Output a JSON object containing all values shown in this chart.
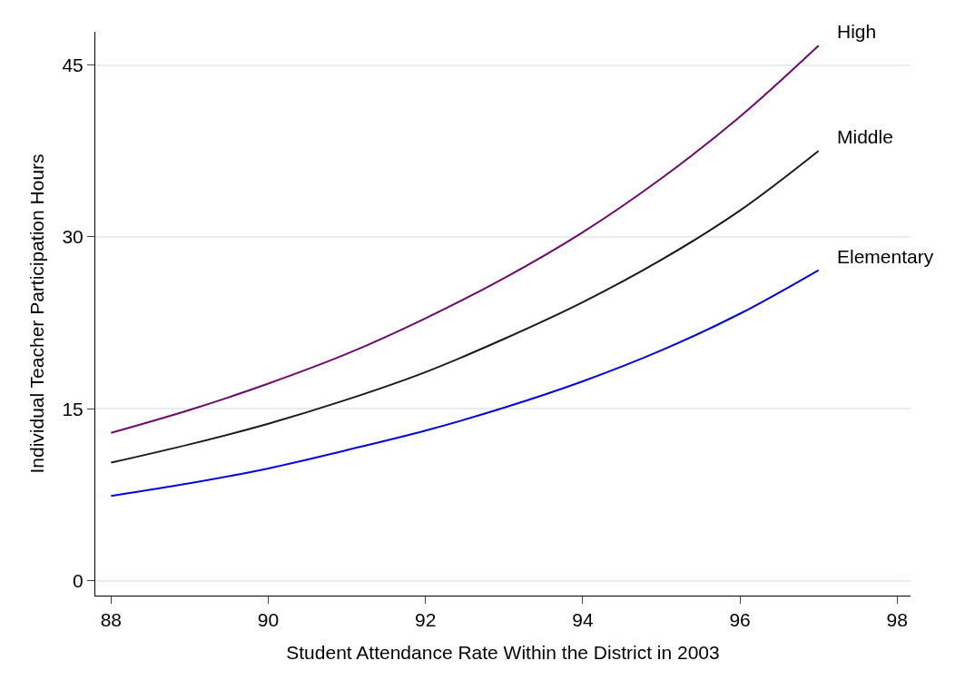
{
  "chart_data": {
    "type": "line",
    "xlabel": "Student Attendance Rate Within the District in 2003",
    "ylabel": "Individual Teacher Participation Hours",
    "x": [
      88,
      89,
      90,
      91,
      92,
      93,
      94,
      95,
      96,
      97
    ],
    "series": [
      {
        "name": "High",
        "color": "#6e0a6e",
        "values": [
          12.9,
          14.9,
          17.2,
          19.8,
          22.9,
          26.4,
          30.4,
          35.1,
          40.5,
          46.7
        ]
      },
      {
        "name": "Middle",
        "color": "#1a1a1a",
        "values": [
          10.3,
          11.9,
          13.7,
          15.8,
          18.2,
          21.1,
          24.3,
          28.0,
          32.3,
          37.5
        ]
      },
      {
        "name": "Elementary",
        "color": "#0000e0",
        "values": [
          7.4,
          8.5,
          9.8,
          11.4,
          13.1,
          15.1,
          17.4,
          20.1,
          23.3,
          27.1
        ]
      }
    ],
    "xlim": [
      87.8,
      98.17
    ],
    "xticks": [
      88,
      90,
      92,
      94,
      96,
      98
    ],
    "ylim": [
      -1.3,
      47.9
    ],
    "yticks": [
      0,
      15,
      30,
      45
    ],
    "grid": "y",
    "legend": false,
    "marker": "none",
    "line_style": "solid"
  }
}
